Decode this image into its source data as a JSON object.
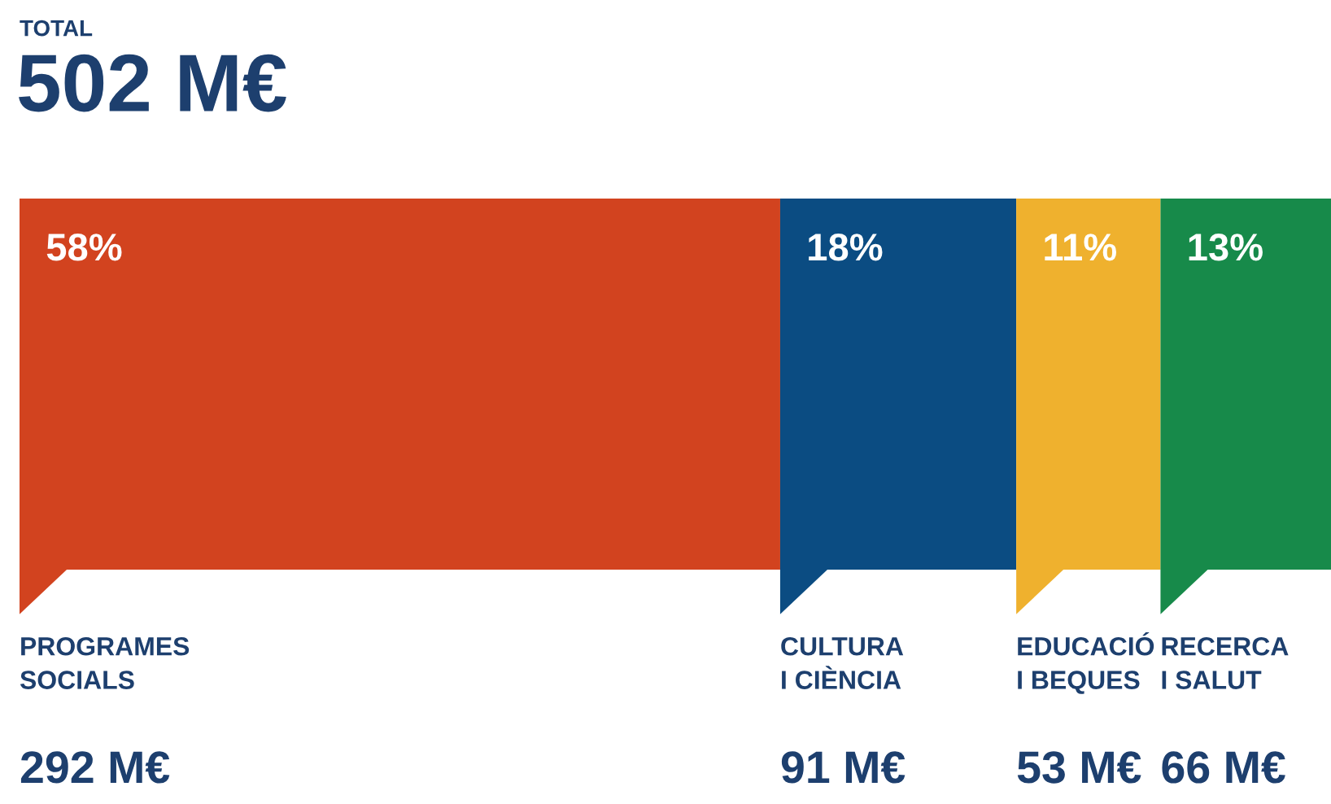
{
  "chart_data": {
    "type": "bar",
    "orientation": "horizontal",
    "stacked": true,
    "title": "TOTAL",
    "subtitle": "502 M€",
    "categories": [
      null
    ],
    "xlim": [
      0,
      100
    ],
    "tick_labels": false,
    "legend": "bottom",
    "series": [
      {
        "name": "PROGRAMES\nSOCIALS",
        "color": "#d2431f",
        "values": [
          58
        ],
        "value_labels": [
          "58%"
        ]
      },
      {
        "name": "CULTURA\nI CIÈNCIA",
        "color": "#0b4c82",
        "values": [
          18
        ],
        "value_labels": [
          "18%"
        ]
      },
      {
        "name": "EDUCACIÓ\nI BEQUES",
        "color": "#efb12e",
        "values": [
          11
        ],
        "value_labels": [
          "11%"
        ]
      },
      {
        "name": "RECERCA\nI SALUT",
        "color": "#178a4a",
        "values": [
          13
        ],
        "value_labels": [
          "13%"
        ]
      }
    ],
    "annotations": [
      "292 M€",
      "91 M€",
      "53 M€",
      "66 M€"
    ]
  }
}
